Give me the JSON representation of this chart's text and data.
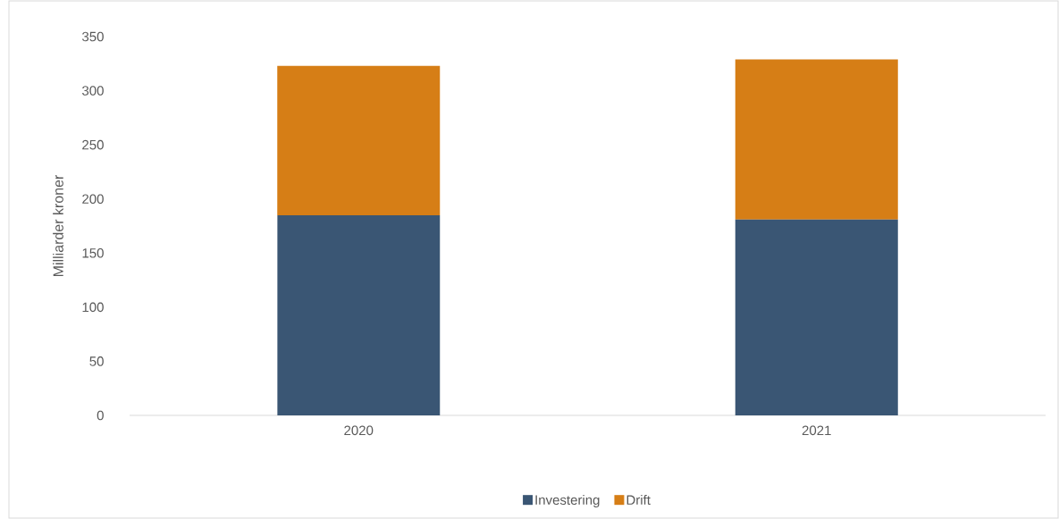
{
  "chart_data": {
    "type": "bar",
    "stacked": true,
    "ylabel": "Milliarder kroner",
    "categories": [
      "2020",
      "2021"
    ],
    "series": [
      {
        "name": "Investering",
        "color": "#3a5674",
        "values": [
          185,
          181
        ]
      },
      {
        "name": "Drift",
        "color": "#d67e16",
        "values": [
          138,
          148
        ]
      }
    ],
    "ylim": [
      0,
      350
    ],
    "yticks": [
      0,
      50,
      100,
      150,
      200,
      250,
      300,
      350
    ],
    "legend": "bottom"
  }
}
